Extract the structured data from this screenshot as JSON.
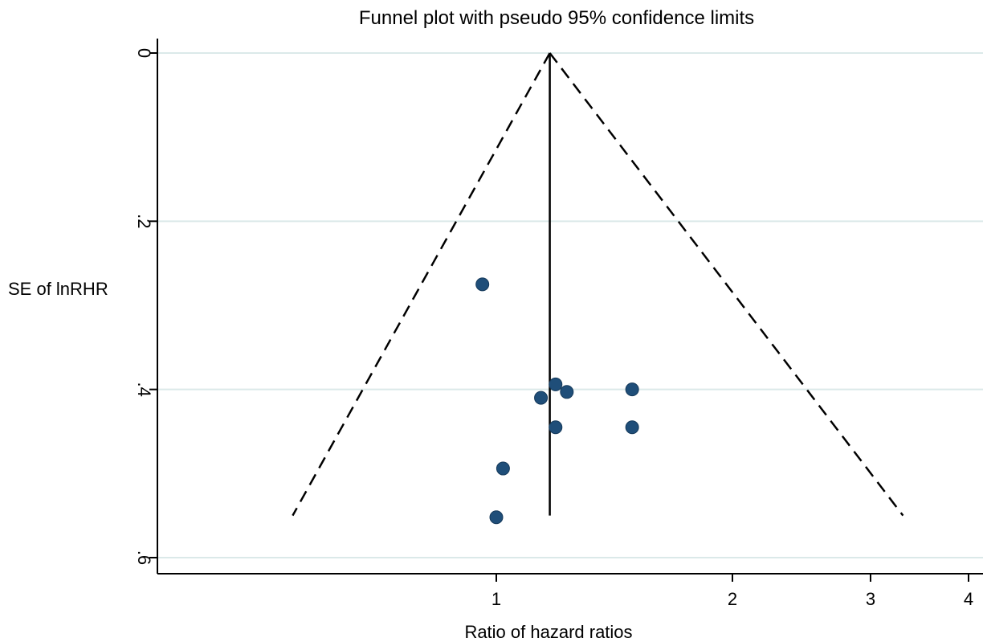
{
  "chart_data": {
    "type": "scatter",
    "title": "Funnel plot with pseudo 95% confidence limits",
    "xlabel": "Ratio of hazard ratios",
    "ylabel": "SE of lnRHR",
    "x_scale": "log",
    "y_reversed": true,
    "xlim": [
      0.53,
      4.08
    ],
    "ylim": [
      0,
      0.6
    ],
    "x_ticks": [
      1,
      2,
      3,
      4
    ],
    "x_tick_labels": [
      "1",
      "2",
      "3",
      "4"
    ],
    "y_ticks": [
      0,
      0.2,
      0.4,
      0.6
    ],
    "y_tick_labels": [
      "0",
      ".2",
      ".4",
      ".6"
    ],
    "grid": "horizontal",
    "pooled_estimate": 1.17,
    "confidence_limits": {
      "line_style": "dashed",
      "apex": [
        1.17,
        0
      ],
      "lower_end": [
        0.55,
        0.55
      ],
      "upper_end": [
        3.3,
        0.55
      ]
    },
    "colors": {
      "points": "#1f4e79",
      "grid": "#dbe9e9",
      "lines": "#000000"
    },
    "points": [
      {
        "x": 0.96,
        "y": 0.275
      },
      {
        "x": 1.19,
        "y": 0.394
      },
      {
        "x": 1.23,
        "y": 0.403
      },
      {
        "x": 1.14,
        "y": 0.41
      },
      {
        "x": 1.49,
        "y": 0.4
      },
      {
        "x": 1.19,
        "y": 0.445
      },
      {
        "x": 1.49,
        "y": 0.445
      },
      {
        "x": 1.02,
        "y": 0.494
      },
      {
        "x": 1.0,
        "y": 0.552
      }
    ]
  }
}
